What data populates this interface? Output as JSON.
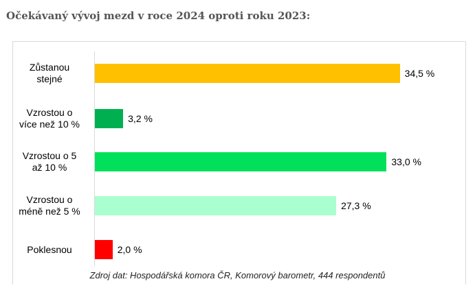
{
  "heading": "Očekávaný vývoj mezd v roce 2024 oproti roku 2023:",
  "chart_data": {
    "type": "bar",
    "orientation": "horizontal",
    "title": "",
    "categories": [
      [
        "Zůstanou",
        "stejné"
      ],
      [
        "Vzrostou o",
        "více než 10 %"
      ],
      [
        "Vzrostou o 5",
        "až 10 %"
      ],
      [
        "Vzrostou o",
        "méně než 5 %"
      ],
      [
        "Poklesnou"
      ]
    ],
    "values": [
      34.5,
      3.2,
      33.0,
      27.3,
      2.0
    ],
    "value_labels": [
      "34,5 %",
      "3,2 %",
      "33,0 %",
      "27,3 %",
      "2,0 %"
    ],
    "colors": [
      "#FFC000",
      "#00B050",
      "#00E05A",
      "#A9FFCF",
      "#FF0000"
    ],
    "xlim": [
      0,
      40
    ],
    "grid": false
  },
  "source": "Zdroj dat: Hospodářská komora ČR, Komorový barometr, 444 respondentů"
}
